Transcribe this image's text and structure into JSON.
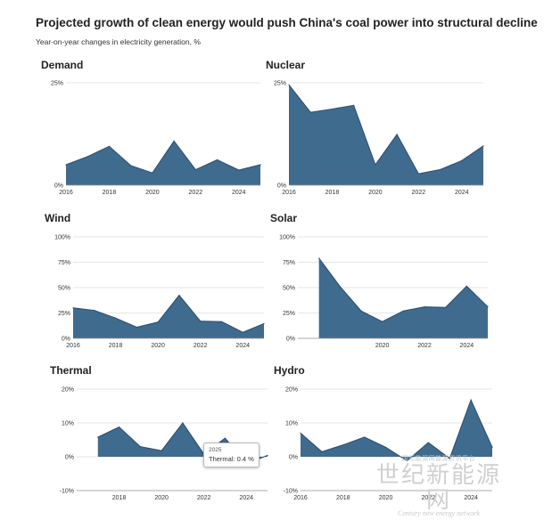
{
  "page": {
    "title": "Projected growth of clean energy would push China's coal power into structural decline",
    "subtitle": "Year-on-year changes in electricity generation, %"
  },
  "style": {
    "area_fill": "#3f6b8f",
    "area_stroke": "#2c4d6b",
    "grid": "#e6e6e6"
  },
  "tooltip": {
    "year": "2025",
    "text": "Thermal: 0.4 %"
  },
  "watermark": {
    "line1": "国际能源网能源资讯平台",
    "line2": "世纪新能源网",
    "line3": "Century new energy network"
  },
  "chart_data": [
    {
      "type": "area",
      "title": "Demand",
      "x": [
        2016,
        2017,
        2018,
        2019,
        2020,
        2021,
        2022,
        2023,
        2024,
        2025
      ],
      "values": [
        5,
        7,
        9.5,
        4.8,
        3,
        10.8,
        3.8,
        6.2,
        3.7,
        5
      ],
      "ylim": [
        0,
        25
      ],
      "yticks": [
        0,
        25
      ],
      "ytick_labels": [
        "0%",
        "25%"
      ],
      "xticks": [
        2016,
        2018,
        2020,
        2022,
        2024
      ],
      "xtick_labels": [
        "2016",
        "2018",
        "2020",
        "2022",
        "2024"
      ]
    },
    {
      "type": "area",
      "title": "Nuclear",
      "x": [
        2016,
        2017,
        2018,
        2019,
        2020,
        2021,
        2022,
        2023,
        2024,
        2025
      ],
      "values": [
        24.5,
        17.8,
        18.6,
        19.5,
        5,
        12.4,
        2.8,
        3.8,
        6,
        9.6
      ],
      "ylim": [
        0,
        25
      ],
      "yticks": [
        0,
        25
      ],
      "ytick_labels": [
        "0%",
        "25%"
      ],
      "xticks": [
        2016,
        2018,
        2020,
        2022,
        2024
      ],
      "xtick_labels": [
        "2016",
        "2018",
        "2020",
        "2022",
        "2024"
      ]
    },
    {
      "type": "area",
      "title": "Wind",
      "x": [
        2016,
        2017,
        2018,
        2019,
        2020,
        2021,
        2022,
        2023,
        2024,
        2025
      ],
      "values": [
        30,
        27.5,
        20,
        11,
        16,
        42.5,
        17,
        16.5,
        6,
        14.5
      ],
      "ylim": [
        0,
        100
      ],
      "yticks": [
        0,
        25,
        50,
        75,
        100
      ],
      "ytick_labels": [
        "0%",
        "25%",
        "50%",
        "75%",
        "100%"
      ],
      "xticks": [
        2016,
        2018,
        2020,
        2022,
        2024
      ],
      "xtick_labels": [
        "2016",
        "2018",
        "2020",
        "2022",
        "2024"
      ]
    },
    {
      "type": "area",
      "title": "Solar",
      "x": [
        2017,
        2018,
        2019,
        2020,
        2021,
        2022,
        2023,
        2024,
        2025
      ],
      "values": [
        79,
        51,
        27,
        16.5,
        27,
        31,
        30.5,
        51.5,
        31
      ],
      "ylim": [
        0,
        100
      ],
      "yticks": [
        0,
        25,
        50,
        75,
        100
      ],
      "ytick_labels": [
        "0%",
        "25%",
        "50%",
        "75%",
        "100%"
      ],
      "xticks": [
        2020,
        2022,
        2024
      ],
      "xtick_labels": [
        "2020",
        "2022",
        "2024"
      ]
    },
    {
      "type": "area",
      "title": "Thermal",
      "x": [
        2017,
        2018,
        2019,
        2020,
        2021,
        2022,
        2023,
        2024,
        2025
      ],
      "values": [
        5.8,
        8.8,
        3,
        1.8,
        10,
        0.8,
        5.5,
        -2,
        0.4
      ],
      "ylim": [
        -10,
        20
      ],
      "yticks": [
        -10,
        0,
        10,
        20
      ],
      "ytick_labels": [
        "-10%",
        "0%",
        "10%",
        "20%"
      ],
      "xticks": [
        2018,
        2020,
        2022,
        2024
      ],
      "xtick_labels": [
        "2018",
        "2020",
        "2022",
        "2024"
      ]
    },
    {
      "type": "area",
      "title": "Hydro",
      "x": [
        2016,
        2017,
        2018,
        2019,
        2020,
        2021,
        2022,
        2023,
        2024,
        2025
      ],
      "values": [
        7,
        1.5,
        3.5,
        5.8,
        2.8,
        -1.2,
        4.2,
        -0.5,
        16.8,
        2.8
      ],
      "ylim": [
        -10,
        20
      ],
      "yticks": [
        -10,
        0,
        10,
        20
      ],
      "ytick_labels": [
        "-10%",
        "0%",
        "10%",
        "20%"
      ],
      "xticks": [
        2016,
        2018,
        2020,
        2022,
        2024
      ],
      "xtick_labels": [
        "2016",
        "2018",
        "2020",
        "2022",
        "2024"
      ]
    }
  ]
}
